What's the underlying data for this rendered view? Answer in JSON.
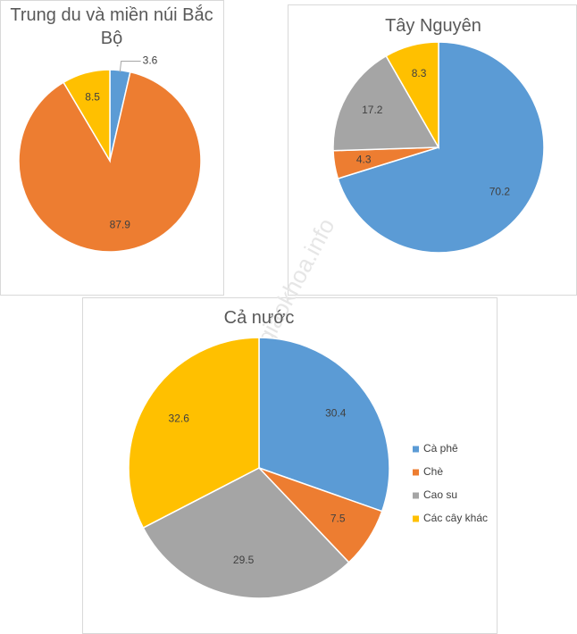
{
  "chart_data": [
    {
      "type": "pie",
      "title": "Trung du và miền núi Bắc Bộ",
      "values": [
        3.6,
        87.9,
        8.5
      ],
      "colors": [
        "#5b9bd5",
        "#ed7d31",
        "#ffc000"
      ]
    },
    {
      "type": "pie",
      "title": "Tây Nguyên",
      "values": [
        70.2,
        4.3,
        17.2,
        8.3
      ],
      "colors": [
        "#5b9bd5",
        "#ed7d31",
        "#a5a5a5",
        "#ffc000"
      ]
    },
    {
      "type": "pie",
      "title": "Cả nước",
      "categories": [
        "Cà phê",
        "Chè",
        "Cao su",
        "Các cây khác"
      ],
      "values": [
        30.4,
        7.5,
        29.5,
        32.6
      ],
      "colors": [
        "#5b9bd5",
        "#ed7d31",
        "#a5a5a5",
        "#ffc000"
      ],
      "legend": "right"
    }
  ],
  "watermark": "sachgiaokhoa.info"
}
